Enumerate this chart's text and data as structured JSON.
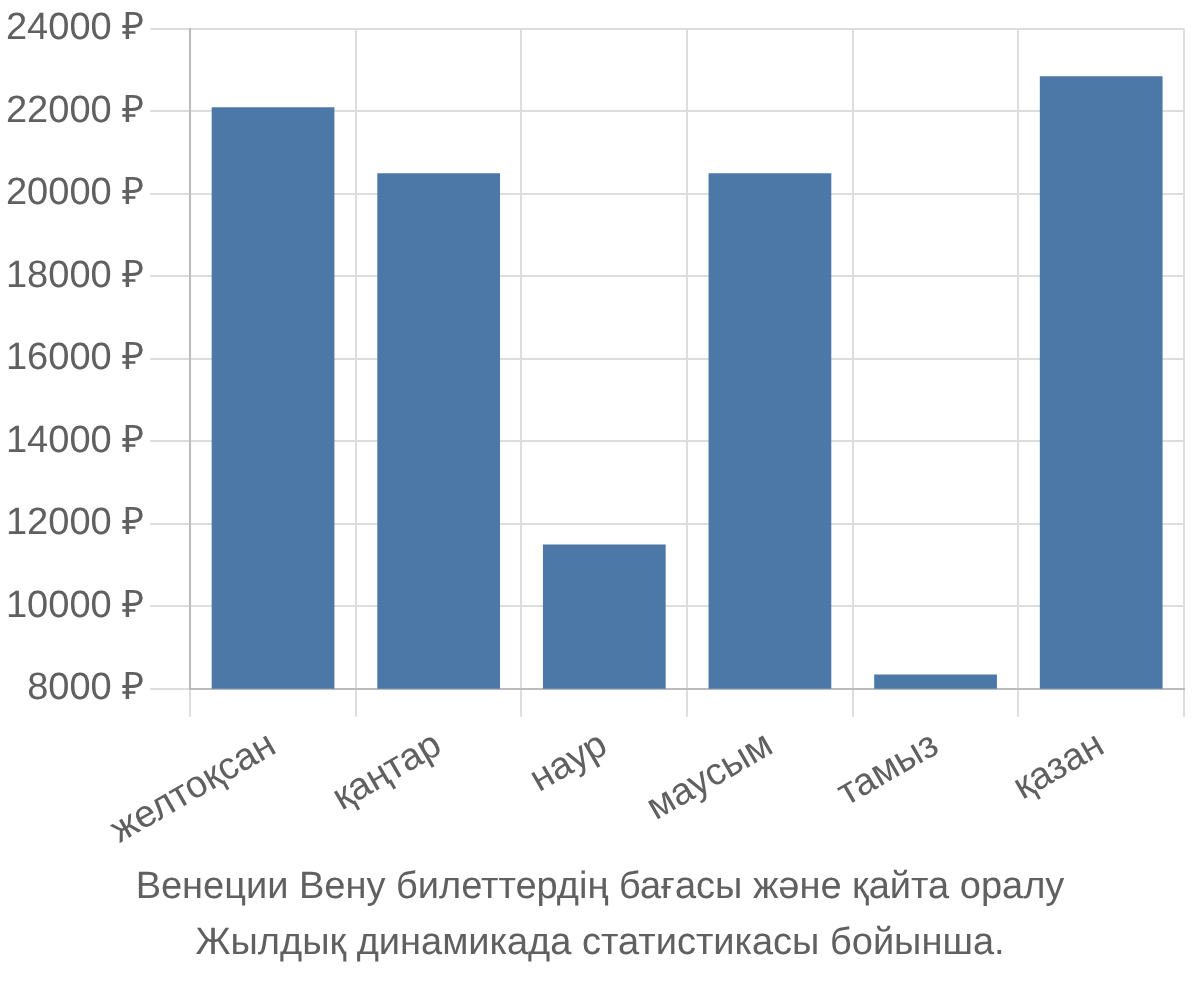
{
  "chart_data": {
    "type": "bar",
    "categories": [
      "желтоқсан",
      "қаңтар",
      "наур",
      "маусым",
      "тамыз",
      "қазан"
    ],
    "values": [
      22100,
      20500,
      11500,
      20500,
      8350,
      22850
    ],
    "color": "#4c78a8",
    "ylim": [
      8000,
      24000
    ],
    "yticks": [
      {
        "value": 8000,
        "label": "8000 ₽"
      },
      {
        "value": 10000,
        "label": "10000 ₽"
      },
      {
        "value": 12000,
        "label": "12000 ₽"
      },
      {
        "value": 14000,
        "label": "14000 ₽"
      },
      {
        "value": 16000,
        "label": "16000 ₽"
      },
      {
        "value": 18000,
        "label": "18000 ₽"
      },
      {
        "value": 20000,
        "label": "20000 ₽"
      },
      {
        "value": 22000,
        "label": "22000 ₽"
      },
      {
        "value": 24000,
        "label": "24000 ₽"
      }
    ],
    "grid": true,
    "annotations": [
      "Венеции Вену билеттердің бағасы және қайта оралу",
      "Жылдық динамикада статистикасы бойынша."
    ]
  }
}
